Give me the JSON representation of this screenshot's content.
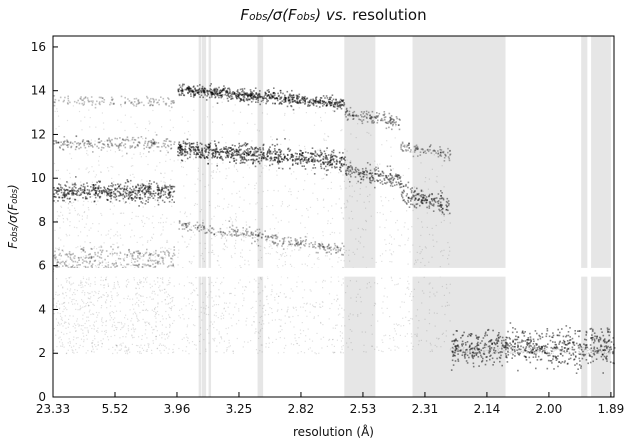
{
  "chart_data": {
    "type": "scatter",
    "title_parts": [
      {
        "text": "F",
        "italic": true
      },
      {
        "text": "obs",
        "italic": true,
        "sub": true
      },
      {
        "text": "/σ(",
        "italic": true
      },
      {
        "text": "F",
        "italic": true
      },
      {
        "text": "obs",
        "italic": true,
        "sub": true
      },
      {
        "text": ") ",
        "italic": true
      },
      {
        "text": "vs.",
        "italic": true
      },
      {
        "text": " resolution",
        "italic": false
      }
    ],
    "xlabel": "resolution (Å)",
    "ylabel_parts": [
      {
        "text": "F",
        "italic": true
      },
      {
        "text": "obs",
        "italic": true,
        "sub": true
      },
      {
        "text": "/σ(",
        "italic": true
      },
      {
        "text": "F",
        "italic": true
      },
      {
        "text": "obs",
        "italic": true,
        "sub": true
      },
      {
        "text": ")",
        "italic": true
      }
    ],
    "x_tick_labels": [
      "23.33",
      "5.52",
      "3.96",
      "3.25",
      "2.82",
      "2.53",
      "2.31",
      "2.14",
      "2.00",
      "1.89"
    ],
    "y_ticks": [
      0,
      2,
      4,
      6,
      8,
      10,
      12,
      14,
      16
    ],
    "ylim": [
      0,
      16.5
    ],
    "x_scale": "position from 0 (23.33 Å) to 9 (1.89 Å), one unit per tick label",
    "xlim": [
      0,
      9.05
    ],
    "excluded_resolution_bands": [
      [
        2.35,
        2.39
      ],
      [
        2.4,
        2.47
      ],
      [
        2.51,
        2.55
      ],
      [
        3.3,
        3.39
      ],
      [
        4.7,
        5.2
      ],
      [
        5.8,
        7.3
      ],
      [
        8.52,
        8.62
      ],
      [
        8.68,
        9.0
      ]
    ],
    "excluded_fobs_band": [
      5.5,
      5.9
    ],
    "density_series": [
      {
        "x_range": [
          0,
          1.95
        ],
        "y": 13.55,
        "spread": 0.12,
        "level": 0.25
      },
      {
        "x_range": [
          0,
          1.95
        ],
        "y": 11.6,
        "spread": 0.15,
        "level": 0.4
      },
      {
        "x_range": [
          0,
          1.95
        ],
        "y": 9.4,
        "spread": 0.22,
        "level": 0.95
      },
      {
        "x_range": [
          0,
          1.95
        ],
        "y": 6.5,
        "spread": 0.18,
        "level": 0.3
      },
      {
        "x_range": [
          0,
          1.95
        ],
        "y": 6.05,
        "spread": 0.14,
        "level": 0.25
      },
      {
        "x_range": [
          2.0,
          4.7
        ],
        "y": 14.1,
        "slope": -0.25,
        "spread": 0.14,
        "level": 0.95
      },
      {
        "x_range": [
          2.0,
          4.7
        ],
        "y": 11.35,
        "slope": -0.2,
        "spread": 0.22,
        "level": 1.0
      },
      {
        "x_range": [
          2.0,
          4.7
        ],
        "y": 7.95,
        "slope": -0.45,
        "spread": 0.15,
        "level": 0.4
      },
      {
        "x_range": [
          4.7,
          5.6
        ],
        "y": 13.0,
        "slope": -0.5,
        "spread": 0.15,
        "level": 0.55
      },
      {
        "x_range": [
          4.7,
          5.6
        ],
        "y": 10.4,
        "slope": -0.5,
        "spread": 0.2,
        "level": 0.75
      },
      {
        "x_range": [
          5.6,
          6.4
        ],
        "y": 11.5,
        "slope": -0.5,
        "spread": 0.15,
        "level": 0.45
      },
      {
        "x_range": [
          5.6,
          6.4
        ],
        "y": 9.3,
        "slope": -0.6,
        "spread": 0.22,
        "level": 0.8
      },
      {
        "x_range": [
          6.4,
          9.05
        ],
        "y": 2.3,
        "slope": 0.0,
        "spread": 0.4,
        "level": 0.95
      }
    ]
  }
}
